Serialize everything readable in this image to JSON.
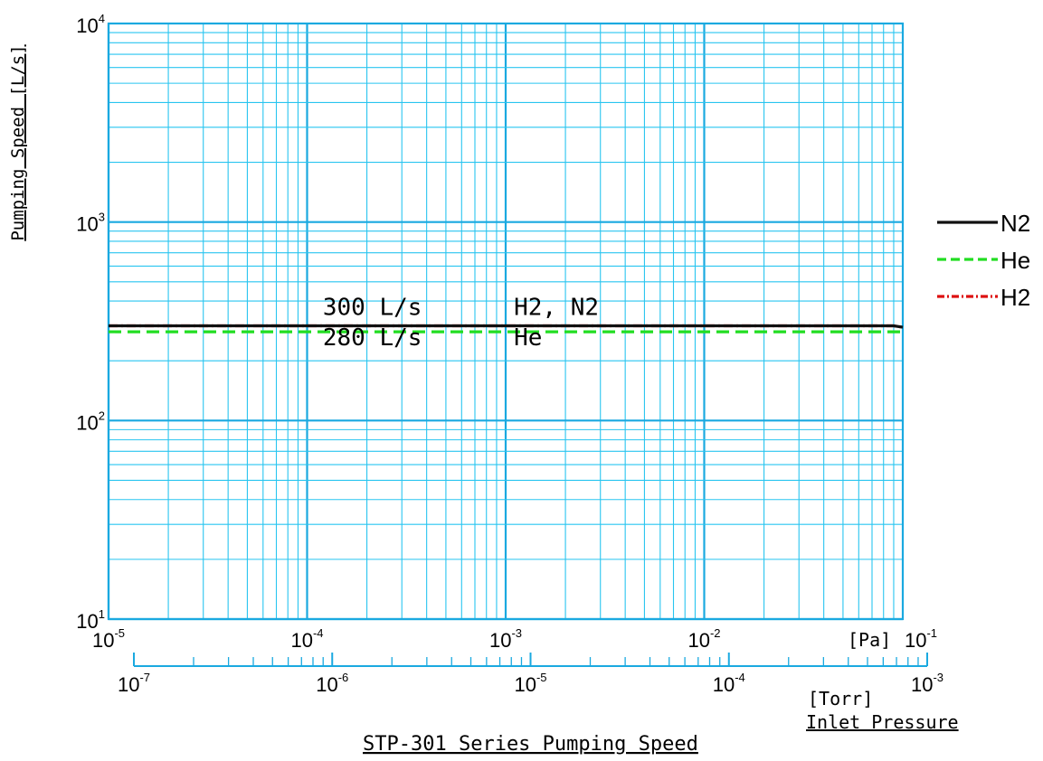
{
  "chart_data": {
    "type": "line",
    "title": "STP-301 Series Pumping Speed",
    "xlabel": "Inlet Pressure",
    "ylabel": "Pumping Speed [L/s]",
    "x_scale": "log",
    "y_scale": "log",
    "x_unit": "[Pa]",
    "x2_unit": "[Torr]",
    "xlim": [
      1e-05,
      0.1
    ],
    "ylim": [
      10,
      10000
    ],
    "x2lim": [
      1e-07,
      0.001
    ],
    "x_ticks": [
      {
        "base": "10",
        "exp": "-5"
      },
      {
        "base": "10",
        "exp": "-4"
      },
      {
        "base": "10",
        "exp": "-3"
      },
      {
        "base": "10",
        "exp": "-2"
      },
      {
        "base": "10",
        "exp": "-1"
      }
    ],
    "x2_ticks": [
      {
        "base": "10",
        "exp": "-7"
      },
      {
        "base": "10",
        "exp": "-6"
      },
      {
        "base": "10",
        "exp": "-5"
      },
      {
        "base": "10",
        "exp": "-4"
      },
      {
        "base": "10",
        "exp": "-3"
      }
    ],
    "y_ticks": [
      {
        "base": "10",
        "exp": "1"
      },
      {
        "base": "10",
        "exp": "2"
      },
      {
        "base": "10",
        "exp": "3"
      },
      {
        "base": "10",
        "exp": "4"
      }
    ],
    "grid": true,
    "legend_position": "right",
    "series": [
      {
        "name": "N2",
        "color": "#111111",
        "style": "solid",
        "x": [
          1e-05,
          0.09,
          0.1
        ],
        "y": [
          300,
          300,
          295
        ]
      },
      {
        "name": "He",
        "color": "#22dd22",
        "style": "dashed",
        "x": [
          1e-05,
          0.1
        ],
        "y": [
          280,
          280
        ]
      },
      {
        "name": "H2",
        "color": "#dd1111",
        "style": "dash-dot",
        "x": [
          1e-05,
          0.09,
          0.1
        ],
        "y": [
          300,
          300,
          295
        ]
      }
    ],
    "annotations": [
      {
        "text": "300 L/s",
        "x": 0.00012,
        "y": 340
      },
      {
        "text": "280 L/s",
        "x": 0.00012,
        "y": 240
      },
      {
        "text": "H2, N2",
        "x": 0.0011,
        "y": 340
      },
      {
        "text": "He",
        "x": 0.0011,
        "y": 240
      }
    ]
  },
  "colors": {
    "grid": "#29c5f0",
    "grid_major": "#1aa9e0",
    "axis_text": "#000000"
  }
}
